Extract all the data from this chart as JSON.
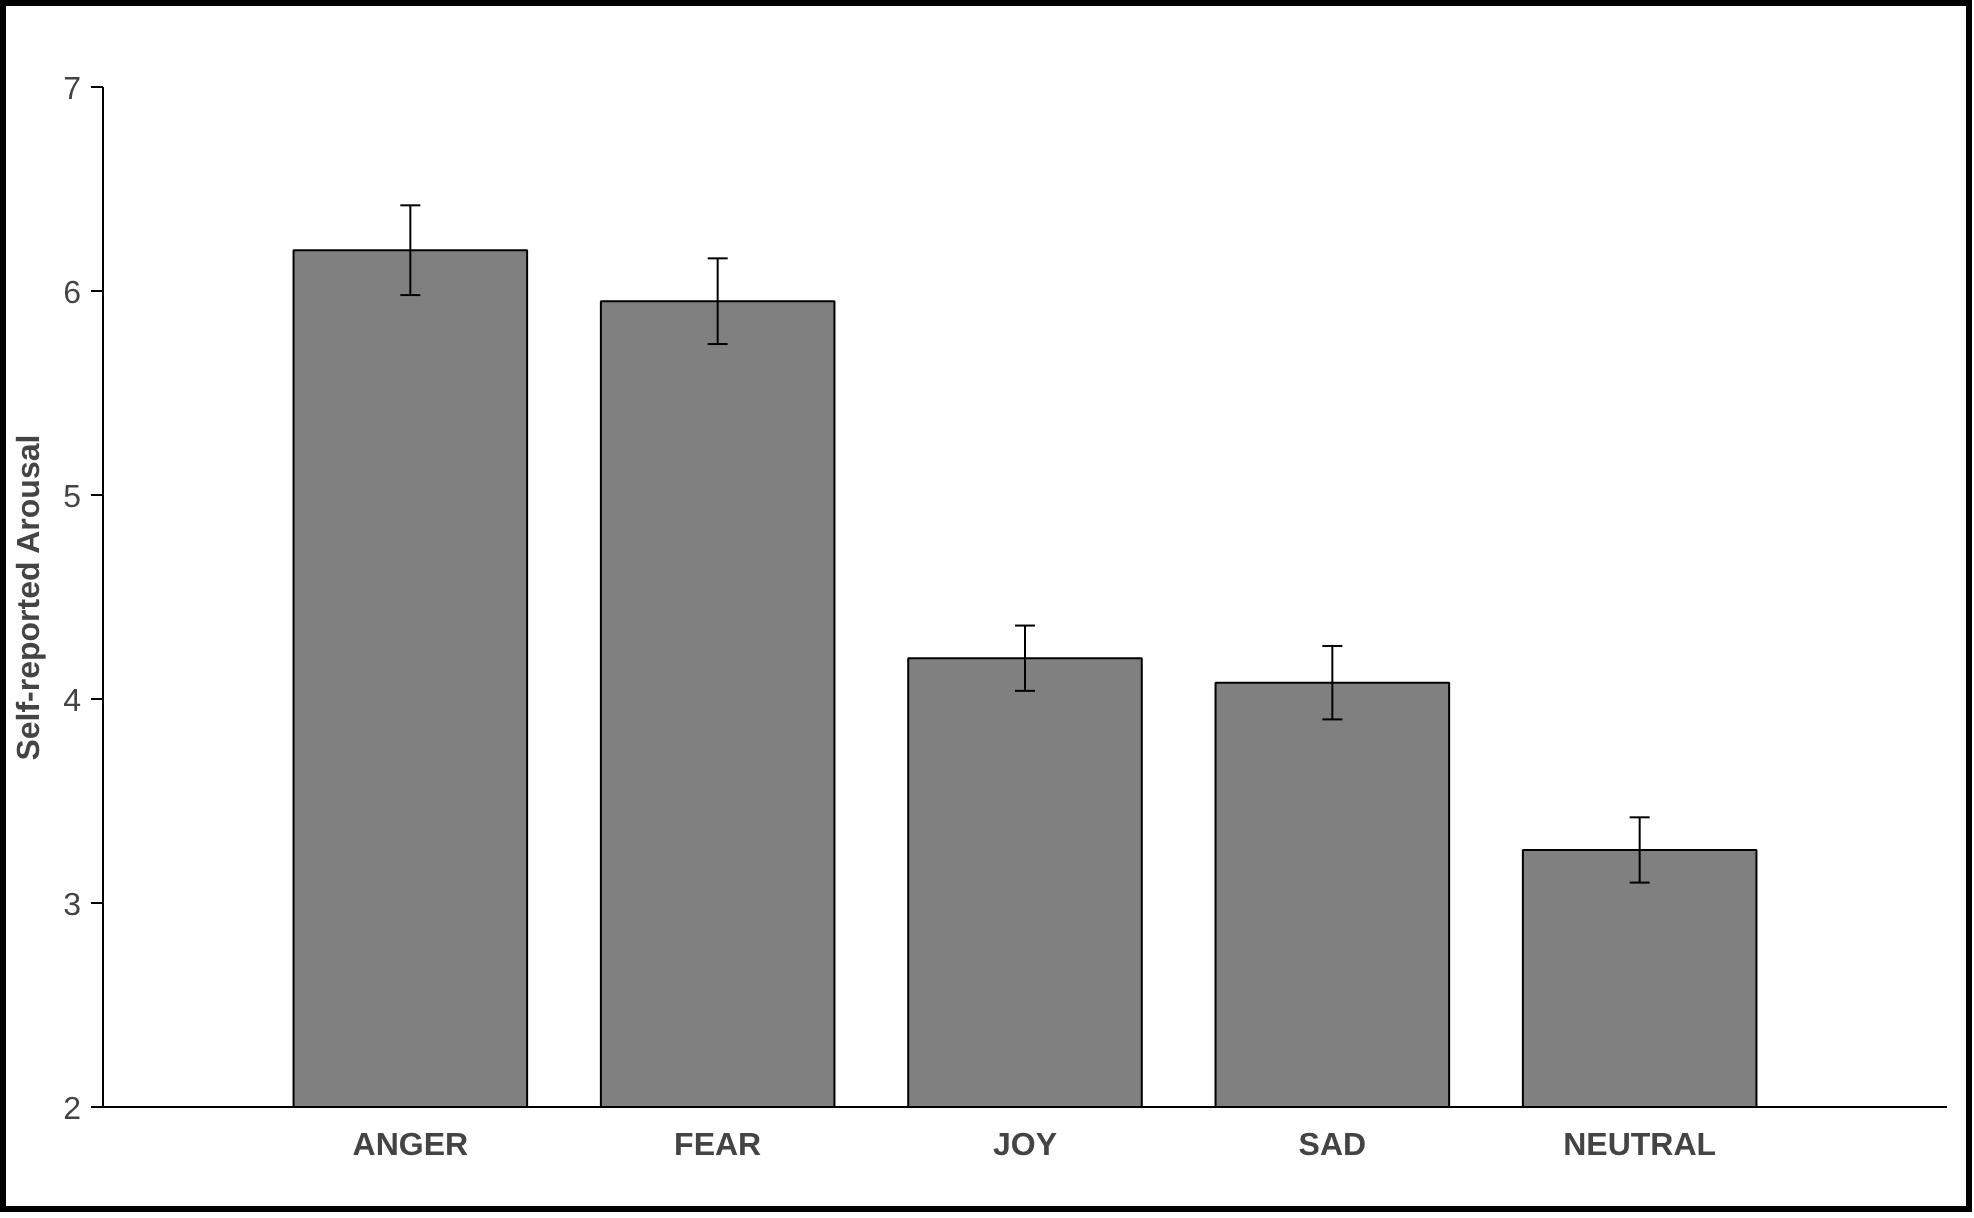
{
  "chart_data": {
    "type": "bar",
    "ylabel": "Self-reported Arousal",
    "categories": [
      "ANGER",
      "FEAR",
      "JOY",
      "SAD",
      "NEUTRAL"
    ],
    "values": [
      6.2,
      5.95,
      4.2,
      4.08,
      3.26
    ],
    "errors": [
      0.22,
      0.21,
      0.16,
      0.18,
      0.16
    ],
    "color": "#808080",
    "ylim": [
      2,
      7
    ],
    "yticks": [
      2,
      3,
      4,
      5,
      6,
      7
    ],
    "grid": false
  }
}
